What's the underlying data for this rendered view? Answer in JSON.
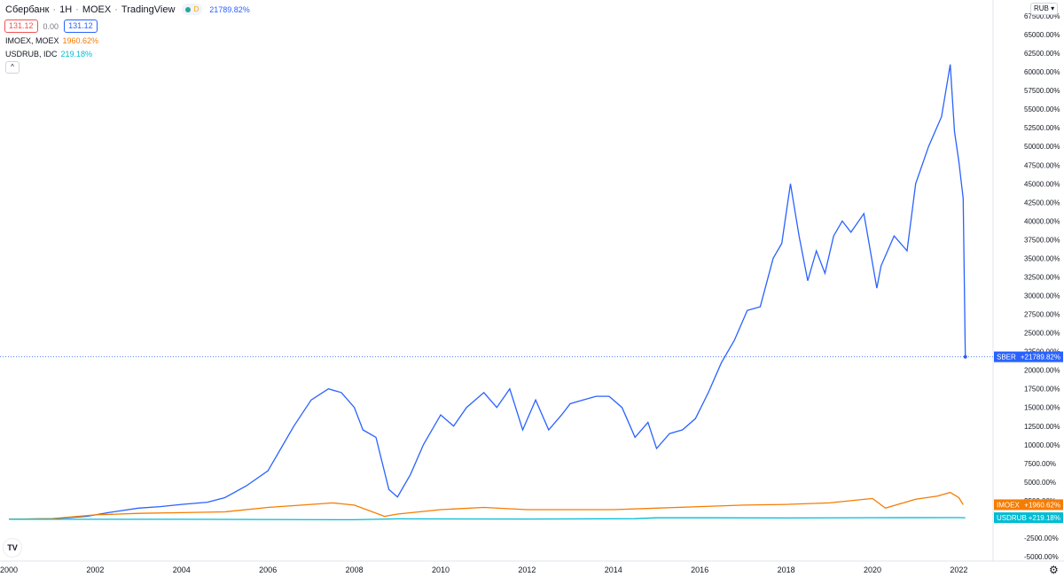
{
  "header": {
    "symbol": "Сбербанк",
    "interval": "1Н",
    "exchange": "MOEX",
    "provider": "TradingView",
    "status_letter": "D",
    "main_change": "21789.82%"
  },
  "prices": {
    "bid": "131.12",
    "spread": "0.00",
    "ask": "131.12"
  },
  "compare_legend": [
    {
      "name": "IMOEX, MOEX",
      "value": "1960.62%",
      "color": "#f57c00"
    },
    {
      "name": "USDRUB, IDC",
      "value": "219.18%",
      "color": "#00bcd4"
    }
  ],
  "currency_button": "RUB",
  "colors": {
    "sber": "#2962ff",
    "imoex": "#f57c00",
    "usdrub": "#00bcd4",
    "text": "#131722"
  },
  "chart_data": {
    "type": "line",
    "y_unit": "%",
    "y_range": [
      -5000,
      67500
    ],
    "x_range": [
      2000,
      2024
    ],
    "y_ticks": [
      "67500.00%",
      "65000.00%",
      "62500.00%",
      "60000.00%",
      "57500.00%",
      "55000.00%",
      "52500.00%",
      "50000.00%",
      "47500.00%",
      "45000.00%",
      "42500.00%",
      "40000.00%",
      "37500.00%",
      "35000.00%",
      "32500.00%",
      "30000.00%",
      "27500.00%",
      "25000.00%",
      "22500.00%",
      "20000.00%",
      "17500.00%",
      "15000.00%",
      "12500.00%",
      "10000.00%",
      "7500.00%",
      "5000.00%",
      "2500.00%",
      "0.00%",
      "-2500.00%",
      "-5000.00%"
    ],
    "y_tick_values": [
      67500,
      65000,
      62500,
      60000,
      57500,
      55000,
      52500,
      50000,
      47500,
      45000,
      42500,
      40000,
      37500,
      35000,
      32500,
      30000,
      27500,
      25000,
      22500,
      20000,
      17500,
      15000,
      12500,
      10000,
      7500,
      5000,
      2500,
      0,
      -2500,
      -5000
    ],
    "x_ticks": [
      "2000",
      "2002",
      "2004",
      "2006",
      "2008",
      "2010",
      "2012",
      "2014",
      "2016",
      "2018",
      "2020",
      "2022"
    ],
    "x_tick_values": [
      2000,
      2002,
      2004,
      2006,
      2008,
      2010,
      2012,
      2014,
      2016,
      2018,
      2020,
      2022
    ],
    "series": [
      {
        "name": "SBER",
        "last_label": "+21789.82%",
        "x": [
          2000,
          2001,
          2001.8,
          2002.3,
          2003,
          2003.5,
          2004,
          2004.6,
          2005,
          2005.5,
          2006,
          2006.3,
          2006.6,
          2007,
          2007.4,
          2007.7,
          2008,
          2008.2,
          2008.5,
          2008.8,
          2009,
          2009.3,
          2009.6,
          2010,
          2010.3,
          2010.6,
          2011,
          2011.3,
          2011.6,
          2011.9,
          2012.2,
          2012.5,
          2012.8,
          2013,
          2013.3,
          2013.6,
          2013.9,
          2014.2,
          2014.5,
          2014.8,
          2015,
          2015.3,
          2015.6,
          2015.9,
          2016.2,
          2016.5,
          2016.8,
          2017.1,
          2017.4,
          2017.7,
          2017.9,
          2018.1,
          2018.3,
          2018.5,
          2018.7,
          2018.9,
          2019.1,
          2019.3,
          2019.5,
          2019.8,
          2020.1,
          2020.2,
          2020.5,
          2020.8,
          2021,
          2021.3,
          2021.6,
          2021.8,
          2021.9,
          2022,
          2022.1,
          2022.15
        ],
        "y": [
          0,
          80,
          400,
          900,
          1500,
          1700,
          2000,
          2300,
          2900,
          4500,
          6500,
          9500,
          12500,
          16000,
          17500,
          17000,
          15000,
          12000,
          11000,
          4000,
          3000,
          6000,
          10000,
          14000,
          12500,
          15000,
          17000,
          15000,
          17500,
          12000,
          16000,
          12000,
          14000,
          15500,
          16000,
          16500,
          16500,
          15000,
          11000,
          13000,
          9500,
          11500,
          12000,
          13500,
          17000,
          21000,
          24000,
          28000,
          28500,
          35000,
          37000,
          45000,
          38000,
          32000,
          36000,
          33000,
          38000,
          40000,
          38500,
          41000,
          31000,
          34000,
          38000,
          36000,
          45000,
          50000,
          54000,
          61000,
          52000,
          48000,
          43000,
          21790
        ]
      },
      {
        "name": "IMOEX",
        "last_label": "+1960.62%",
        "x": [
          2000,
          2001,
          2002,
          2003,
          2004,
          2005,
          2006,
          2007,
          2007.5,
          2008,
          2008.7,
          2009,
          2010,
          2011,
          2012,
          2013,
          2014,
          2015,
          2016,
          2017,
          2018,
          2019,
          2020,
          2020.3,
          2021,
          2021.5,
          2021.8,
          2022,
          2022.1
        ],
        "y": [
          0,
          100,
          600,
          800,
          900,
          1000,
          1600,
          2000,
          2200,
          1900,
          400,
          700,
          1300,
          1600,
          1300,
          1300,
          1300,
          1500,
          1700,
          1900,
          2000,
          2200,
          2800,
          1500,
          2700,
          3100,
          3600,
          2900,
          1961
        ]
      },
      {
        "name": "USDRUB",
        "last_label": "+219.18%",
        "x": [
          2000,
          2004,
          2008,
          2009,
          2012,
          2014.5,
          2015,
          2016,
          2018,
          2020,
          2022,
          2022.1,
          2022.15
        ],
        "y": [
          0,
          0,
          -50,
          60,
          40,
          90,
          200,
          210,
          180,
          220,
          230,
          219,
          219
        ]
      }
    ],
    "last_value_marker": 21789.82,
    "grid": false
  }
}
